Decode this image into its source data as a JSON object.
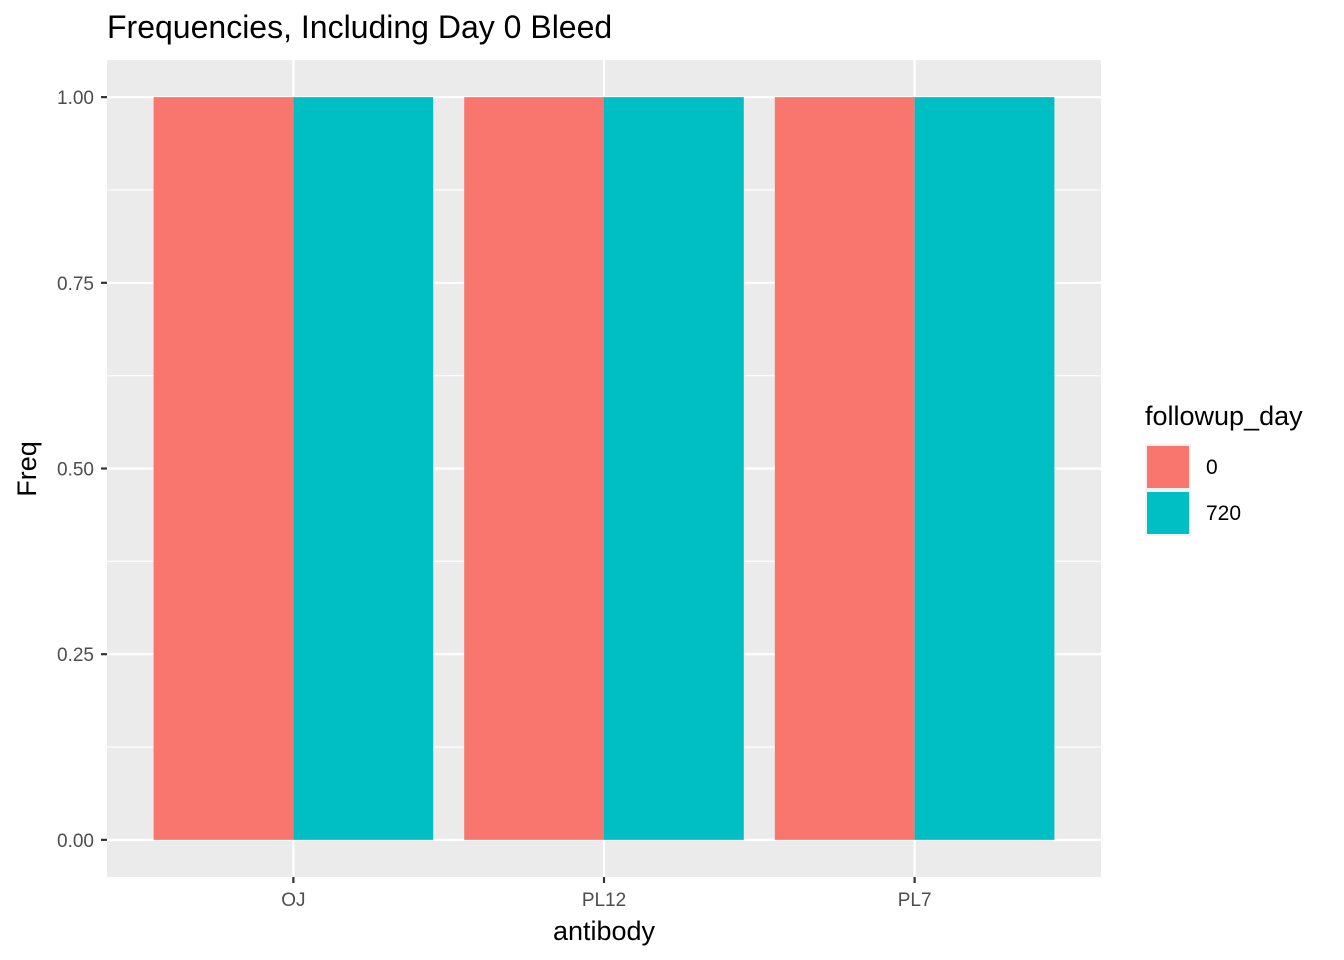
{
  "chart_data": {
    "type": "bar",
    "title": "Frequencies, Including Day 0 Bleed",
    "xlabel": "antibody",
    "ylabel": "Freq",
    "categories": [
      "OJ",
      "PL12",
      "PL7"
    ],
    "series": [
      {
        "name": "0",
        "values": [
          1.0,
          1.0,
          1.0
        ],
        "color": "#F8766D"
      },
      {
        "name": "720",
        "values": [
          1.0,
          1.0,
          1.0
        ],
        "color": "#00BFC4"
      }
    ],
    "ylim": [
      -0.05,
      1.05
    ],
    "yticks": [
      "0.00",
      "0.25",
      "0.50",
      "0.75",
      "1.00"
    ],
    "legend": {
      "title": "followup_day",
      "placement": "right"
    },
    "grid": true,
    "panel_background": "#EBEBEB",
    "gridline_color": "#FFFFFF"
  }
}
